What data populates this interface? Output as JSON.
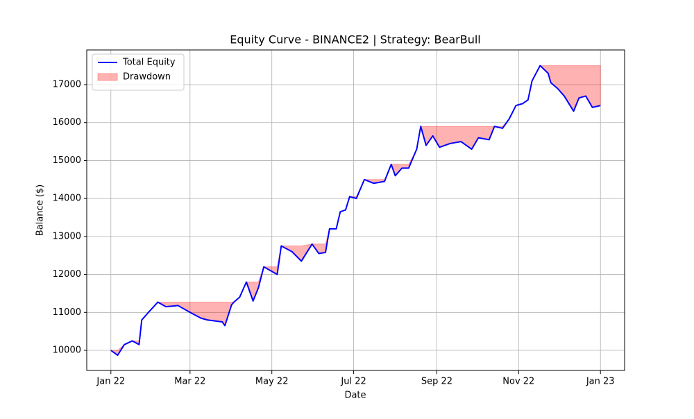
{
  "chart_data": {
    "type": "line",
    "title": "Equity Curve - BINANCE2 | Strategy: BearBull",
    "x_label": "Date",
    "y_label": "Balance ($)",
    "x": [
      0,
      5,
      10,
      16,
      21,
      23,
      28,
      35,
      41,
      50,
      59,
      67,
      72,
      83,
      85,
      90,
      92,
      96,
      101,
      106,
      110,
      114,
      119,
      124,
      127,
      135,
      142,
      150,
      155,
      160,
      163,
      168,
      171,
      175,
      178,
      183,
      189,
      196,
      204,
      209,
      212,
      217,
      222,
      228,
      231,
      235,
      240,
      245,
      253,
      261,
      269,
      274,
      282,
      286,
      292,
      297,
      302,
      307,
      311,
      314,
      320,
      326,
      328,
      333,
      338,
      345,
      349,
      354,
      359,
      365
    ],
    "series": [
      {
        "name": "Total Equity",
        "color": "#0000ff",
        "values": [
          10000,
          9870,
          10150,
          10250,
          10150,
          10800,
          11000,
          11270,
          11150,
          11180,
          11000,
          10850,
          10800,
          10750,
          10650,
          11200,
          11280,
          11400,
          11800,
          11300,
          11650,
          12200,
          12100,
          12000,
          12750,
          12600,
          12350,
          12800,
          12550,
          12580,
          13200,
          13200,
          13650,
          13700,
          14050,
          14000,
          14500,
          14400,
          14450,
          14900,
          14600,
          14800,
          14800,
          15300,
          15900,
          15400,
          15650,
          15350,
          15450,
          15500,
          15300,
          15600,
          15550,
          15900,
          15850,
          16100,
          16450,
          16500,
          16600,
          17100,
          17500,
          17300,
          17050,
          16900,
          16700,
          16300,
          16650,
          16700,
          16400,
          16450
        ]
      },
      {
        "name": "Drawdown",
        "color": "#ff0000",
        "values": [
          10000,
          10000,
          10150,
          10250,
          10250,
          10800,
          11000,
          11270,
          11270,
          11270,
          11270,
          11270,
          11270,
          11270,
          11270,
          11270,
          11280,
          11400,
          11800,
          11800,
          11800,
          12200,
          12200,
          12200,
          12750,
          12750,
          12750,
          12800,
          12800,
          12800,
          13200,
          13200,
          13650,
          13700,
          14050,
          14050,
          14500,
          14500,
          14500,
          14900,
          14900,
          14900,
          14900,
          15300,
          15900,
          15900,
          15900,
          15900,
          15900,
          15900,
          15900,
          15900,
          15900,
          15900,
          15900,
          16100,
          16450,
          16500,
          16600,
          17100,
          17500,
          17500,
          17500,
          17500,
          17500,
          17500,
          17500,
          17500,
          17500,
          17500
        ]
      }
    ],
    "xlim": [
      -18,
      383
    ],
    "xticks": [
      {
        "value": 0,
        "label": "Jan 22"
      },
      {
        "value": 59,
        "label": "Mar 22"
      },
      {
        "value": 120,
        "label": "May 22"
      },
      {
        "value": 181,
        "label": "Jul 22"
      },
      {
        "value": 243,
        "label": "Sep 22"
      },
      {
        "value": 304,
        "label": "Nov 22"
      },
      {
        "value": 365,
        "label": "Jan 23"
      }
    ],
    "ylim": [
      9470,
      17914
    ],
    "yticks": [
      10000,
      11000,
      12000,
      13000,
      14000,
      15000,
      16000,
      17000
    ],
    "grid": true,
    "legend": "upper-left"
  }
}
